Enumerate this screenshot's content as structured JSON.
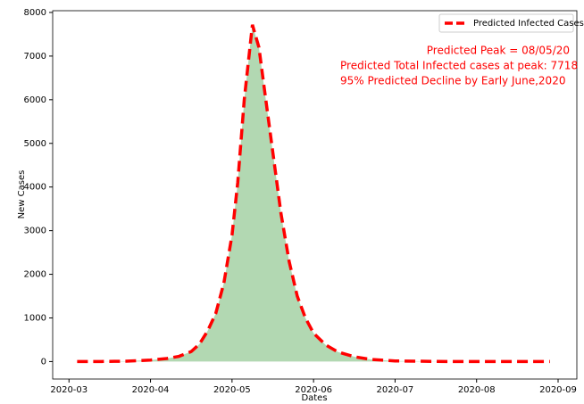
{
  "chart_data": {
    "type": "area_line",
    "x_label": "Dates",
    "y_label": "New Cases",
    "x": [
      3.1,
      3.4,
      3.7,
      4.0,
      4.2,
      4.35,
      4.5,
      4.6,
      4.7,
      4.8,
      4.9,
      5.0,
      5.07,
      5.15,
      5.25,
      5.33,
      5.4,
      5.5,
      5.6,
      5.7,
      5.8,
      5.9,
      6.0,
      6.15,
      6.3,
      6.5,
      6.7,
      7.0,
      7.5,
      8.0,
      8.5,
      8.9
    ],
    "series": [
      {
        "name": "Predicted Infected Cases",
        "color": "#ff0000",
        "fill": "#b2d8b2",
        "values": [
          0,
          2,
          8,
          35,
          70,
          120,
          230,
          400,
          700,
          1100,
          1800,
          2900,
          4100,
          6000,
          7718,
          7200,
          6200,
          4800,
          3400,
          2300,
          1500,
          1000,
          650,
          380,
          220,
          110,
          50,
          15,
          3,
          0,
          0,
          0
        ]
      }
    ],
    "annotations": [
      "Predicted Peak = 08/05/20",
      "Predicted Total Infected cases at peak: 7718",
      "95% Predicted Decline by Early June,2020"
    ],
    "xlim": [
      2.8,
      9.23
    ],
    "xticks": [
      {
        "value": 3,
        "label": "2020-03"
      },
      {
        "value": 4,
        "label": "2020-04"
      },
      {
        "value": 5,
        "label": "2020-05"
      },
      {
        "value": 6,
        "label": "2020-06"
      },
      {
        "value": 7,
        "label": "2020-07"
      },
      {
        "value": 8,
        "label": "2020-08"
      },
      {
        "value": 9,
        "label": "2020-09"
      }
    ],
    "ylim": [
      -400,
      8040
    ],
    "yticks": [
      0,
      1000,
      2000,
      3000,
      4000,
      5000,
      6000,
      7000,
      8000
    ],
    "legend": "upper right"
  }
}
